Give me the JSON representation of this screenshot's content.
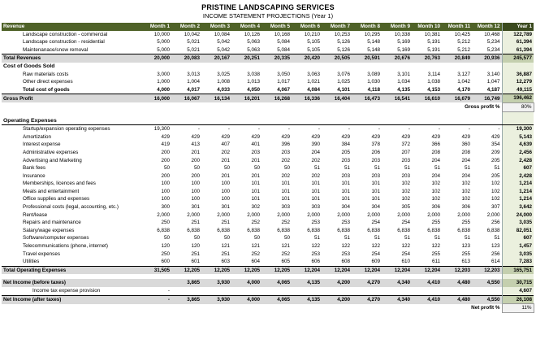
{
  "title": "PRISTINE LANDSCAPING SERVICES",
  "subtitle": "INCOME STATEMENT PROJECTIONS (Year 1)",
  "header": {
    "label": "Revenue",
    "months": [
      "Month 1",
      "Month 2",
      "Month 3",
      "Month 4",
      "Month 5",
      "Month 6",
      "Month 7",
      "Month 8",
      "Month 9",
      "Month 10",
      "Month 11",
      "Month 12"
    ],
    "year": "Year 1"
  },
  "rows": [
    {
      "label": "Landscape construction - commercial",
      "values": [
        "10,000",
        "10,042",
        "10,084",
        "10,126",
        "10,168",
        "10,210",
        "10,253",
        "10,295",
        "10,338",
        "10,381",
        "10,425",
        "10,468"
      ],
      "year": "122,789"
    },
    {
      "label": "Landscape construction - residential",
      "values": [
        "5,000",
        "5,021",
        "5,042",
        "5,063",
        "5,084",
        "5,105",
        "5,126",
        "5,148",
        "5,169",
        "5,191",
        "5,212",
        "5,234"
      ],
      "year": "61,394"
    },
    {
      "label": "Maintenanace/snow removal",
      "values": [
        "5,000",
        "5,021",
        "5,042",
        "5,063",
        "5,084",
        "5,105",
        "5,126",
        "5,148",
        "5,169",
        "5,191",
        "5,212",
        "5,234"
      ],
      "year": "61,394"
    },
    {
      "label": "Total Revenues",
      "values": [
        "20,000",
        "20,083",
        "20,167",
        "20,251",
        "20,335",
        "20,420",
        "20,505",
        "20,591",
        "20,676",
        "20,763",
        "20,849",
        "20,936"
      ],
      "year": "245,577"
    },
    {
      "label": "Cost of Goods Sold",
      "values": [
        "",
        "",
        "",
        "",
        "",
        "",
        "",
        "",
        "",
        "",
        "",
        ""
      ],
      "year": ""
    },
    {
      "label": "Raw materials costs",
      "values": [
        "3,000",
        "3,013",
        "3,025",
        "3,038",
        "3,050",
        "3,063",
        "3,076",
        "3,089",
        "3,101",
        "3,114",
        "3,127",
        "3,140"
      ],
      "year": "36,887"
    },
    {
      "label": "Other direct expenses",
      "values": [
        "1,000",
        "1,004",
        "1,008",
        "1,013",
        "1,017",
        "1,021",
        "1,025",
        "1,030",
        "1,034",
        "1,038",
        "1,042",
        "1,047"
      ],
      "year": "12,279"
    },
    {
      "label": "Total cost of goods",
      "values": [
        "4,000",
        "4,017",
        "4,033",
        "4,050",
        "4,067",
        "4,084",
        "4,101",
        "4,118",
        "4,135",
        "4,153",
        "4,170",
        "4,187"
      ],
      "year": "49,115"
    },
    {
      "label": "Gross Profit",
      "values": [
        "16,000",
        "16,067",
        "16,134",
        "16,201",
        "16,268",
        "16,336",
        "16,404",
        "16,473",
        "16,541",
        "16,610",
        "16,679",
        "16,749"
      ],
      "year": "196,462"
    },
    {
      "label": "Gross profit %",
      "values": [],
      "year": "80%"
    },
    {
      "label": "",
      "values": [],
      "year": ""
    },
    {
      "label": "Operating Expenses",
      "values": [
        "",
        "",
        "",
        "",
        "",
        "",
        "",
        "",
        "",
        "",
        "",
        ""
      ],
      "year": ""
    },
    {
      "label": "Startup/expansion operating expenses",
      "values": [
        "19,300",
        "-",
        "-",
        "-",
        "-",
        "-",
        "-",
        "-",
        "-",
        "-",
        "-",
        "-"
      ],
      "year": "19,300"
    },
    {
      "label": "Amortization",
      "values": [
        "429",
        "429",
        "429",
        "429",
        "429",
        "429",
        "429",
        "429",
        "429",
        "429",
        "429",
        "429"
      ],
      "year": "5,143"
    },
    {
      "label": "Interest expense",
      "values": [
        "419",
        "413",
        "407",
        "401",
        "396",
        "390",
        "384",
        "378",
        "372",
        "366",
        "360",
        "354"
      ],
      "year": "4,639"
    },
    {
      "label": "Administrative expenses",
      "values": [
        "200",
        "201",
        "202",
        "203",
        "203",
        "204",
        "205",
        "206",
        "207",
        "208",
        "208",
        "209"
      ],
      "year": "2,456"
    },
    {
      "label": "Advertising and Marketing",
      "values": [
        "200",
        "200",
        "201",
        "201",
        "202",
        "202",
        "203",
        "203",
        "203",
        "204",
        "204",
        "205"
      ],
      "year": "2,428"
    },
    {
      "label": "Bank fees",
      "values": [
        "50",
        "50",
        "50",
        "50",
        "50",
        "51",
        "51",
        "51",
        "51",
        "51",
        "51",
        "51"
      ],
      "year": "607"
    },
    {
      "label": "Insurance",
      "values": [
        "200",
        "200",
        "201",
        "201",
        "202",
        "202",
        "203",
        "203",
        "203",
        "204",
        "204",
        "205"
      ],
      "year": "2,428"
    },
    {
      "label": "Memberships, licences and fees",
      "values": [
        "100",
        "100",
        "100",
        "101",
        "101",
        "101",
        "101",
        "101",
        "102",
        "102",
        "102",
        "102"
      ],
      "year": "1,214"
    },
    {
      "label": "Meals and entertainment",
      "values": [
        "100",
        "100",
        "100",
        "101",
        "101",
        "101",
        "101",
        "101",
        "102",
        "102",
        "102",
        "102"
      ],
      "year": "1,214"
    },
    {
      "label": "Office supplies and expenses",
      "values": [
        "100",
        "100",
        "100",
        "101",
        "101",
        "101",
        "101",
        "101",
        "102",
        "102",
        "102",
        "102"
      ],
      "year": "1,214"
    },
    {
      "label": "Professional costs (legal, accounting, etc.)",
      "values": [
        "300",
        "301",
        "301",
        "302",
        "303",
        "303",
        "304",
        "304",
        "305",
        "306",
        "306",
        "307"
      ],
      "year": "3,642"
    },
    {
      "label": "Rent/lease",
      "values": [
        "2,000",
        "2,000",
        "2,000",
        "2,000",
        "2,000",
        "2,000",
        "2,000",
        "2,000",
        "2,000",
        "2,000",
        "2,000",
        "2,000"
      ],
      "year": "24,000"
    },
    {
      "label": "Repairs and maintenance",
      "values": [
        "250",
        "251",
        "251",
        "252",
        "252",
        "253",
        "253",
        "254",
        "254",
        "255",
        "255",
        "256"
      ],
      "year": "3,035"
    },
    {
      "label": "Salary/wage expenses",
      "values": [
        "6,838",
        "6,838",
        "6,838",
        "6,838",
        "6,838",
        "6,838",
        "6,838",
        "6,838",
        "6,838",
        "6,838",
        "6,838",
        "6,838"
      ],
      "year": "82,051"
    },
    {
      "label": "Software/computer expenses",
      "values": [
        "50",
        "50",
        "50",
        "50",
        "50",
        "51",
        "51",
        "51",
        "51",
        "51",
        "51",
        "51"
      ],
      "year": "607"
    },
    {
      "label": "Telecommunications (phone, internet)",
      "values": [
        "120",
        "120",
        "121",
        "121",
        "121",
        "122",
        "122",
        "122",
        "122",
        "122",
        "123",
        "123"
      ],
      "year": "1,457"
    },
    {
      "label": "Travel expenses",
      "values": [
        "250",
        "251",
        "251",
        "252",
        "252",
        "253",
        "253",
        "254",
        "254",
        "255",
        "255",
        "256"
      ],
      "year": "3,035"
    },
    {
      "label": "Utilities",
      "values": [
        "600",
        "601",
        "603",
        "604",
        "605",
        "606",
        "608",
        "609",
        "610",
        "611",
        "613",
        "614"
      ],
      "year": "7,283"
    },
    {
      "label": "Total Operating Expenses",
      "values": [
        "31,505",
        "12,205",
        "12,205",
        "12,205",
        "12,205",
        "12,204",
        "12,204",
        "12,204",
        "12,204",
        "12,204",
        "12,203",
        "12,203"
      ],
      "year": "165,751"
    },
    {
      "label": "",
      "values": [],
      "year": ""
    },
    {
      "label": "Net Income (before taxes)",
      "values": [
        "",
        "3,865",
        "3,930",
        "4,000",
        "4,065",
        "4,135",
        "4,200",
        "4,270",
        "4,340",
        "4,410",
        "4,480",
        "4,550"
      ],
      "year": "30,715"
    },
    {
      "label": "Income tax expense provision",
      "values": [
        "-",
        "",
        "",
        "",
        "",
        "",
        "",
        "",
        "",
        "",
        "",
        ""
      ],
      "year": "4,607"
    },
    {
      "label": "Net Income (after taxes)",
      "values": [
        "-",
        "3,865",
        "3,930",
        "4,000",
        "4,065",
        "4,135",
        "4,200",
        "4,270",
        "4,340",
        "4,410",
        "4,480",
        "4,550"
      ],
      "year": "26,108"
    },
    {
      "label": "Net profit %",
      "values": [],
      "year": "11%"
    }
  ]
}
